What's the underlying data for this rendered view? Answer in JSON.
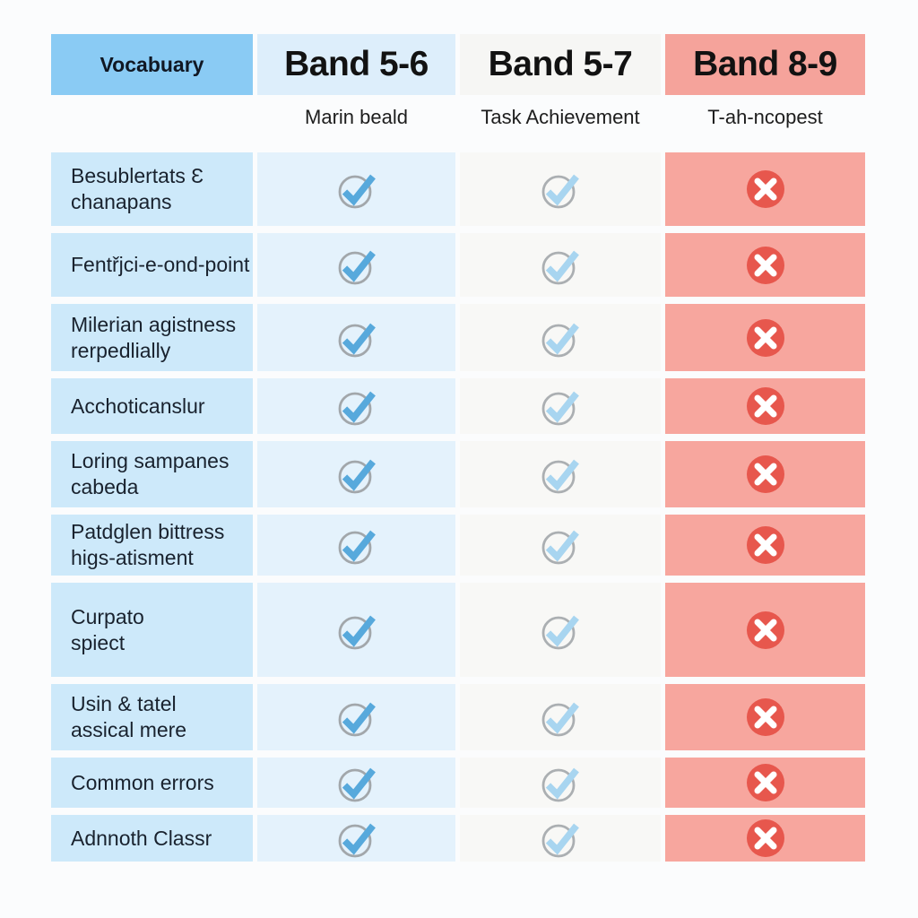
{
  "page": {
    "background": "#fbfcfd"
  },
  "table": {
    "columns": [
      {
        "id": "vocabulary",
        "header": "Vocabuary",
        "subtitle": "",
        "header_bg": "#8acbf4",
        "cell_bg": "#cde9fa",
        "cell_type": "label"
      },
      {
        "id": "band-5-6",
        "header": "Band 5-6",
        "subtitle": "Marin beald",
        "header_bg": "#ddeefb",
        "cell_bg": "#e4f2fc",
        "cell_type": "check",
        "check_color": "#57a9dc",
        "circle_color": "#a2a7ab"
      },
      {
        "id": "band-5-7",
        "header": "Band 5-7",
        "subtitle": "Task Achievement",
        "header_bg": "#f6f6f4",
        "cell_bg": "#f8f8f6",
        "cell_type": "check",
        "check_color": "#a8d5f0",
        "circle_color": "#abafb2"
      },
      {
        "id": "band-8-9",
        "header": "Band 8-9",
        "subtitle": "T-ah-ncopest",
        "header_bg": "#f5a39b",
        "cell_bg": "#f7a69e",
        "cell_type": "cross",
        "cross_circle_color": "#e7574d",
        "cross_mark_color": "#ffffff"
      }
    ],
    "rows": [
      {
        "label": "Besublertats Ɛ\nchanapans",
        "band_5_6": "check",
        "band_5_7": "check",
        "band_8_9": "cross"
      },
      {
        "label": "Fentřjci-e-ond-point",
        "band_5_6": "check",
        "band_5_7": "check",
        "band_8_9": "cross"
      },
      {
        "label": "Milerian agistness\nrerpedlially",
        "band_5_6": "check",
        "band_5_7": "check",
        "band_8_9": "cross"
      },
      {
        "label": "Acchoticanslur",
        "band_5_6": "check",
        "band_5_7": "check",
        "band_8_9": "cross"
      },
      {
        "label": "Loring sampanes\ncabeda",
        "band_5_6": "check",
        "band_5_7": "check",
        "band_8_9": "cross"
      },
      {
        "label": "Patdglen bittress\nhigs-atisment",
        "band_5_6": "check",
        "band_5_7": "check",
        "band_8_9": "cross"
      },
      {
        "label": "Curpato\nspiect",
        "band_5_6": "check",
        "band_5_7": "check",
        "band_8_9": "cross"
      },
      {
        "label": "Usin & tatel\nassical mere",
        "band_5_6": "check",
        "band_5_7": "check",
        "band_8_9": "cross"
      },
      {
        "label": "Common errors",
        "band_5_6": "check",
        "band_5_7": "check",
        "band_8_9": "cross"
      },
      {
        "label": "Adnnoth Classr",
        "band_5_6": "check",
        "band_5_7": "check",
        "band_8_9": "cross"
      }
    ]
  },
  "chart_data": {
    "type": "table",
    "title": "",
    "columns": [
      "Vocabuary",
      "Band 5-6",
      "Band 5-7",
      "Band 8-9"
    ],
    "column_subtitles": [
      "",
      "Marin beald",
      "Task Achievement",
      "T-ah-ncopest"
    ],
    "row_labels": [
      "Besublertats Ɛ chanapans",
      "Fentřjci-e-ond-point",
      "Milerian agistness rerpedlially",
      "Acchoticanslur",
      "Loring sampanes cabeda",
      "Patdglen bittress higs-atisment",
      "Curpato spiect",
      "Usin & tatel assical mere",
      "Common errors",
      "Adnnoth Classr"
    ],
    "series": [
      {
        "name": "Band 5-6",
        "values": [
          "✓",
          "✓",
          "✓",
          "✓",
          "✓",
          "✓",
          "✓",
          "✓",
          "✓",
          "✓"
        ]
      },
      {
        "name": "Band 5-7",
        "values": [
          "✓",
          "✓",
          "✓",
          "✓",
          "✓",
          "✓",
          "✓",
          "✓",
          "✓",
          "✓"
        ]
      },
      {
        "name": "Band 8-9",
        "values": [
          "✗",
          "✗",
          "✗",
          "✗",
          "✗",
          "✗",
          "✗",
          "✗",
          "✗",
          "✗"
        ]
      }
    ],
    "legend_position": "none",
    "grid": "off"
  }
}
